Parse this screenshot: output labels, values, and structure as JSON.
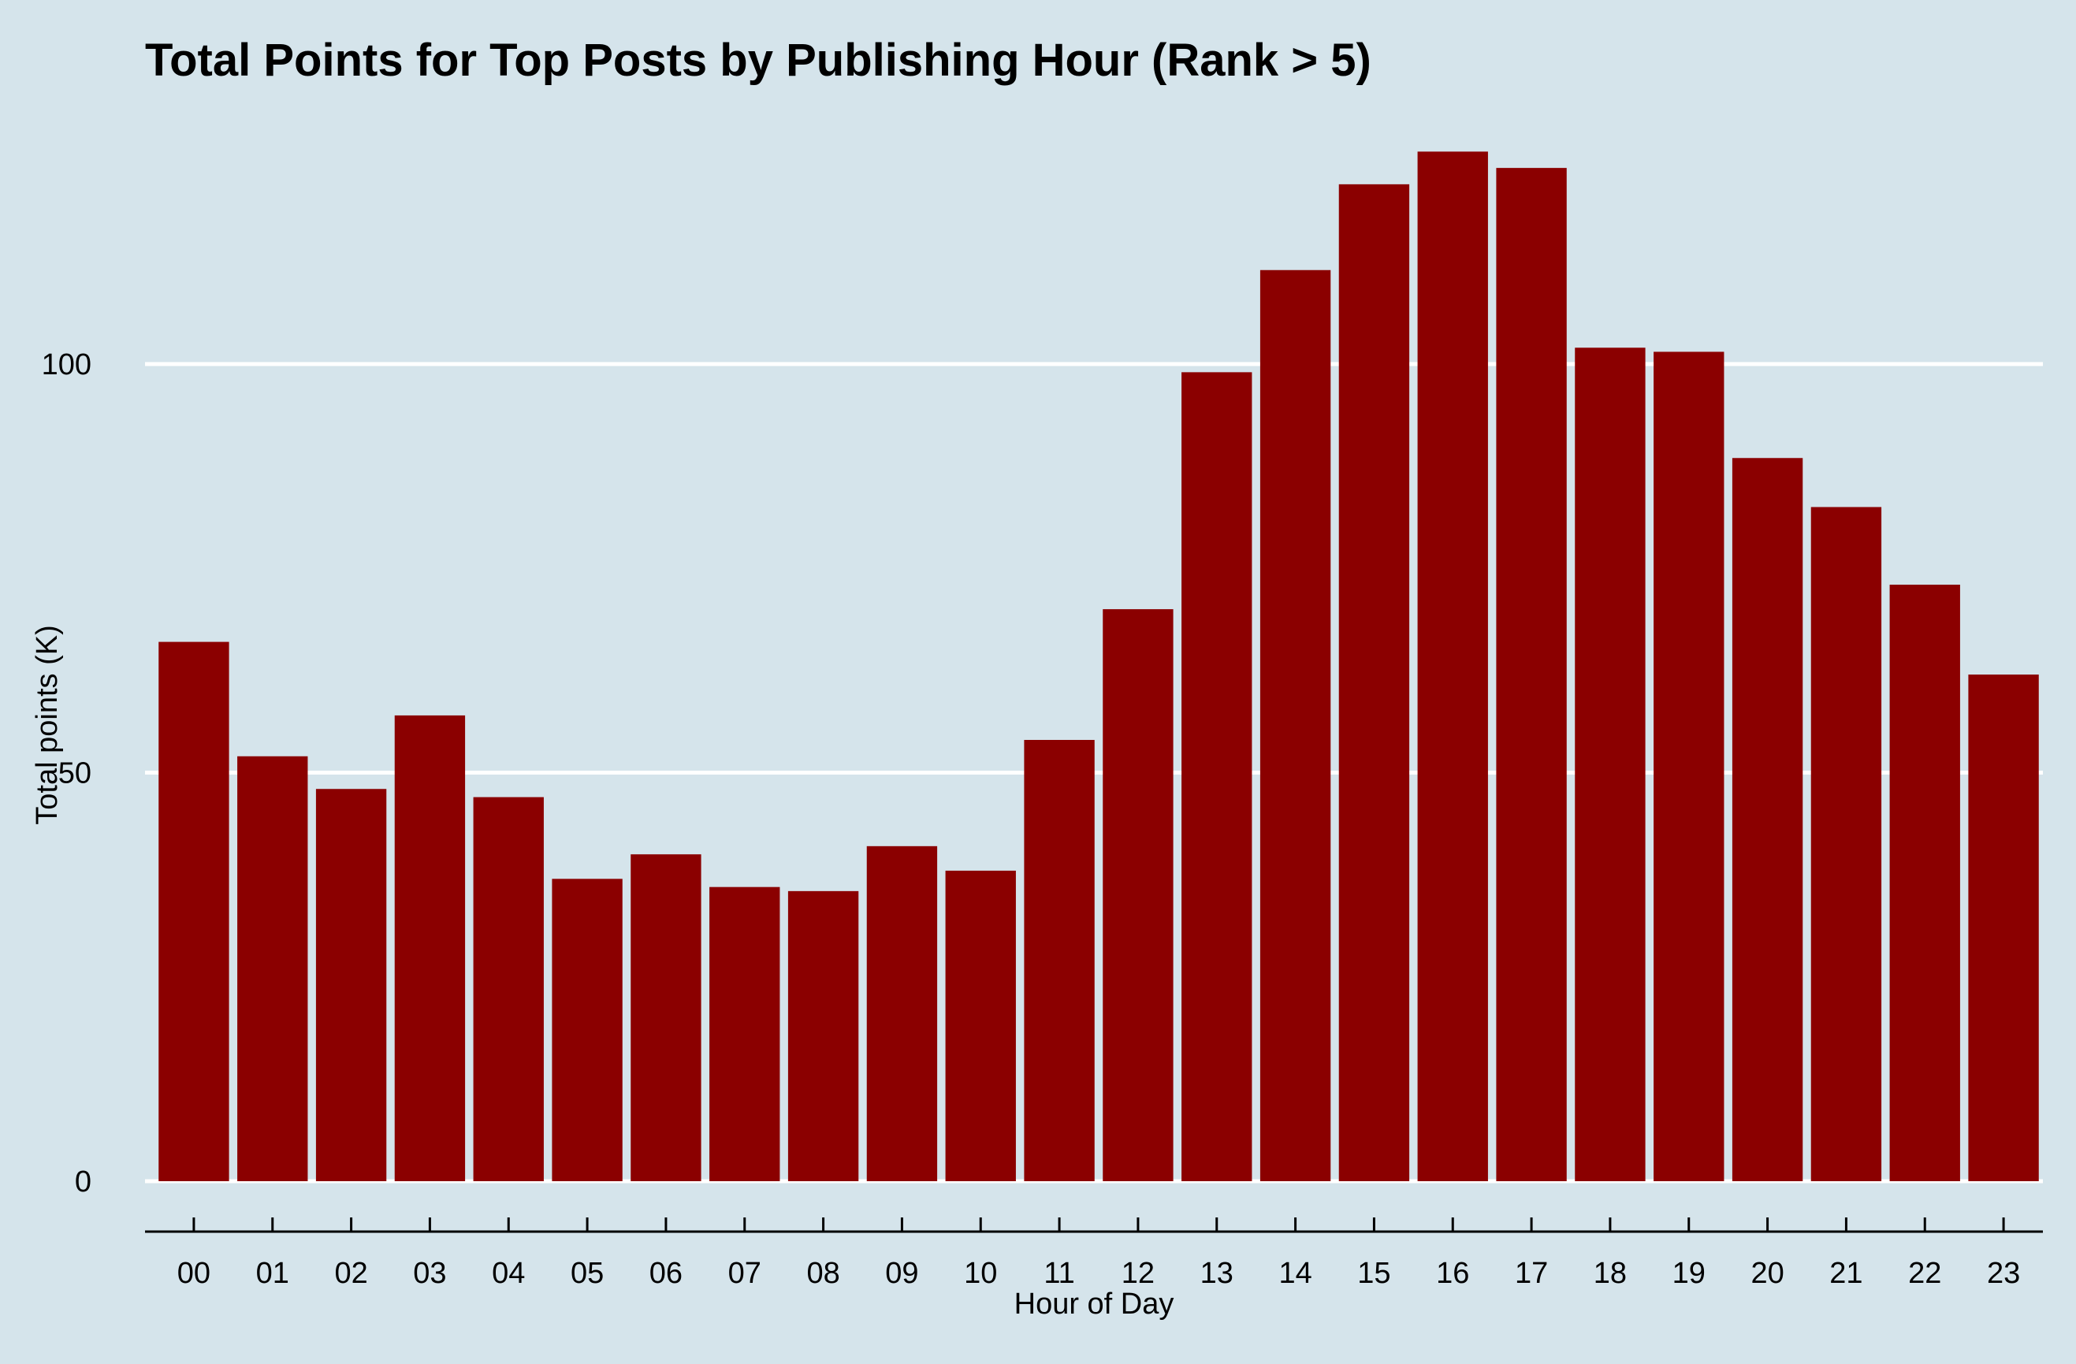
{
  "chart_data": {
    "type": "bar",
    "title": "Total Points for Top Posts by Publishing Hour (Rank > 5)",
    "xlabel": "Hour of Day",
    "ylabel": "Total points (K)",
    "categories": [
      "00",
      "01",
      "02",
      "03",
      "04",
      "05",
      "06",
      "07",
      "08",
      "09",
      "10",
      "11",
      "12",
      "13",
      "14",
      "15",
      "16",
      "17",
      "18",
      "19",
      "20",
      "21",
      "22",
      "23"
    ],
    "values": [
      66,
      52,
      48,
      57,
      47,
      37,
      40,
      36,
      35.5,
      41,
      38,
      54,
      70,
      99,
      111.5,
      122,
      126,
      124,
      102,
      101.5,
      88.5,
      82.5,
      73,
      62
    ],
    "ylim": [
      0,
      130
    ],
    "yticks": [
      0,
      50,
      100
    ],
    "ytick_labels": [
      "0",
      "50",
      "100"
    ],
    "grid": "horizontal",
    "legend": "none",
    "colors": {
      "bar": "#8b0000",
      "background": "#d5e4eb",
      "grid": "#ffffff",
      "axis": "#000000"
    }
  }
}
